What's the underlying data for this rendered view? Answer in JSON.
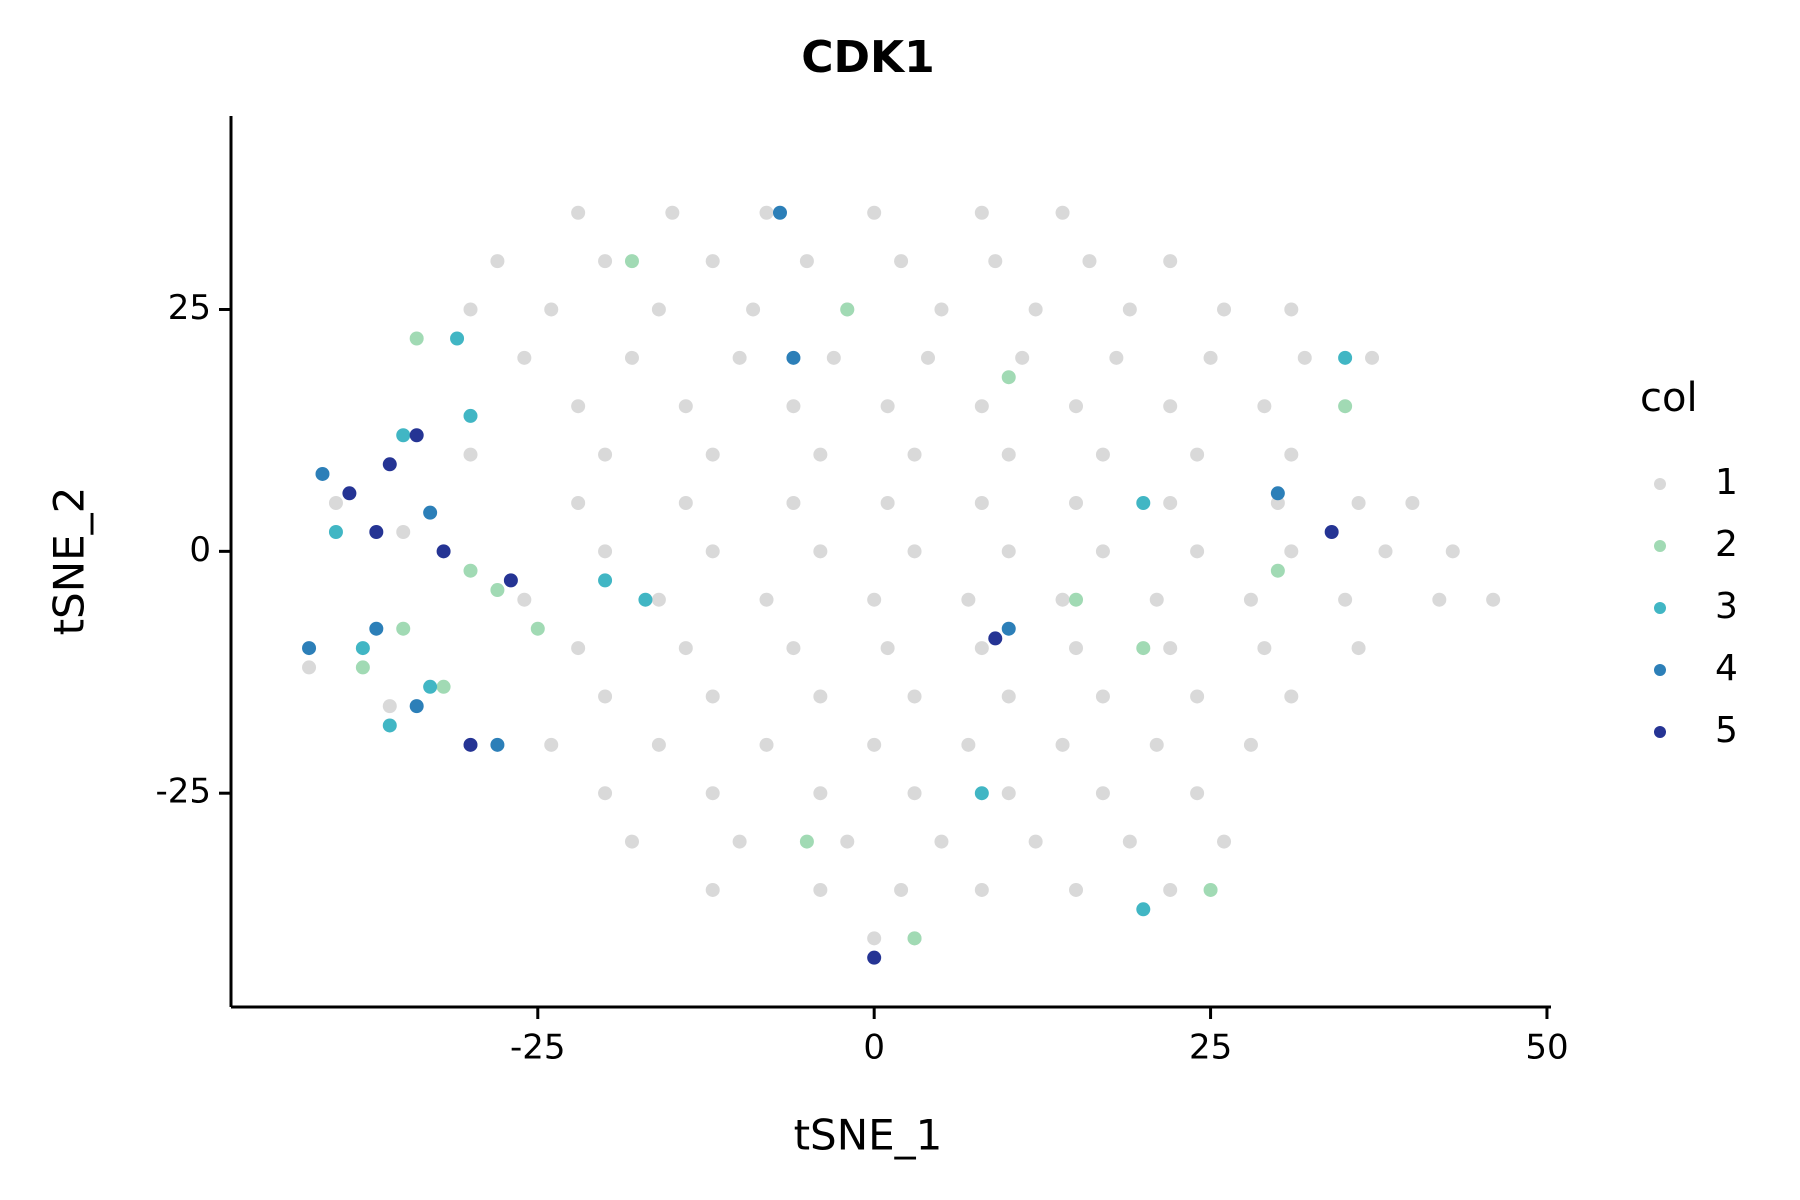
{
  "chart_data": {
    "type": "scatter",
    "title": "CDK1",
    "x_label": "tSNE_1",
    "y_label": "tSNE_2",
    "legend_title": "col",
    "legend_position": "right",
    "xlim": [
      -47.8,
      50.3
    ],
    "ylim": [
      -47.1,
      45
    ],
    "xticks": [
      -25,
      0,
      25,
      50
    ],
    "yticks": [
      -25,
      0,
      25
    ],
    "series": [
      {
        "name": "1",
        "color": "#d9d9d9",
        "x": [
          -22,
          -15,
          -8,
          0,
          8,
          14,
          -28,
          -20,
          -12,
          -5,
          2,
          9,
          16,
          22,
          -30,
          -24,
          -16,
          -9,
          -2,
          5,
          12,
          19,
          26,
          31,
          -26,
          -18,
          -10,
          -3,
          4,
          11,
          18,
          25,
          32,
          37,
          -22,
          -14,
          -6,
          1,
          8,
          15,
          22,
          29,
          -30,
          -20,
          -12,
          -4,
          3,
          10,
          17,
          24,
          31,
          -22,
          -14,
          -6,
          1,
          8,
          15,
          22,
          30,
          36,
          40,
          -20,
          -12,
          -4,
          3,
          10,
          17,
          24,
          31,
          38,
          43,
          -26,
          -16,
          -8,
          0,
          7,
          14,
          21,
          28,
          35,
          42,
          46,
          -22,
          -14,
          -6,
          1,
          8,
          15,
          22,
          29,
          36,
          -20,
          -12,
          -4,
          3,
          10,
          17,
          24,
          31,
          -24,
          -16,
          -8,
          0,
          7,
          14,
          21,
          28,
          -20,
          -12,
          -4,
          3,
          10,
          17,
          24,
          -18,
          -10,
          -2,
          5,
          12,
          19,
          26,
          -12,
          -4,
          2,
          8,
          15,
          22,
          0,
          3,
          -40,
          -35,
          -42,
          -36
        ],
        "values": [
          35,
          35,
          35,
          35,
          35,
          35,
          30,
          30,
          30,
          30,
          30,
          30,
          30,
          30,
          25,
          25,
          25,
          25,
          25,
          25,
          25,
          25,
          25,
          25,
          20,
          20,
          20,
          20,
          20,
          20,
          20,
          20,
          20,
          20,
          15,
          15,
          15,
          15,
          15,
          15,
          15,
          15,
          10,
          10,
          10,
          10,
          10,
          10,
          10,
          10,
          10,
          5,
          5,
          5,
          5,
          5,
          5,
          5,
          5,
          5,
          5,
          0,
          0,
          0,
          0,
          0,
          0,
          0,
          0,
          0,
          0,
          -5,
          -5,
          -5,
          -5,
          -5,
          -5,
          -5,
          -5,
          -5,
          -5,
          -5,
          -10,
          -10,
          -10,
          -10,
          -10,
          -10,
          -10,
          -10,
          -10,
          -15,
          -15,
          -15,
          -15,
          -15,
          -15,
          -15,
          -15,
          -20,
          -20,
          -20,
          -20,
          -20,
          -20,
          -20,
          -20,
          -25,
          -25,
          -25,
          -25,
          -25,
          -25,
          -25,
          -30,
          -30,
          -30,
          -30,
          -30,
          -30,
          -30,
          -35,
          -35,
          -35,
          -35,
          -35,
          -35,
          -40,
          -40,
          5,
          2,
          -12,
          -16
        ]
      },
      {
        "name": "2",
        "color": "#a1dab4",
        "x": [
          -34,
          -30,
          -28,
          -25,
          -38,
          -35,
          -32,
          -2,
          10,
          20,
          35,
          -5,
          25,
          3,
          15,
          -18,
          30
        ],
        "values": [
          22,
          -2,
          -4,
          -8,
          -12,
          -8,
          -14,
          25,
          18,
          -10,
          15,
          -30,
          -35,
          -40,
          -5,
          30,
          -2
        ]
      },
      {
        "name": "3",
        "color": "#41b6c4",
        "x": [
          -40,
          -36,
          -38,
          -33,
          -31,
          -35,
          -30,
          20,
          -17,
          8,
          35,
          20,
          -20
        ],
        "values": [
          2,
          -18,
          -10,
          -14,
          22,
          12,
          14,
          5,
          -5,
          -25,
          20,
          -37,
          -3
        ]
      },
      {
        "name": "4",
        "color": "#2c7fb8",
        "x": [
          -41,
          -42,
          -37,
          -34,
          -33,
          -28,
          -6,
          10,
          -7,
          30
        ],
        "values": [
          8,
          -10,
          -8,
          -16,
          4,
          -20,
          20,
          -8,
          35,
          6
        ]
      },
      {
        "name": "5",
        "color": "#253494",
        "x": [
          -39,
          -36,
          -34,
          -37,
          -32,
          -30,
          -27,
          9,
          34,
          0
        ],
        "values": [
          6,
          9,
          12,
          2,
          0,
          -20,
          -3,
          -9,
          2,
          -42
        ]
      }
    ]
  }
}
